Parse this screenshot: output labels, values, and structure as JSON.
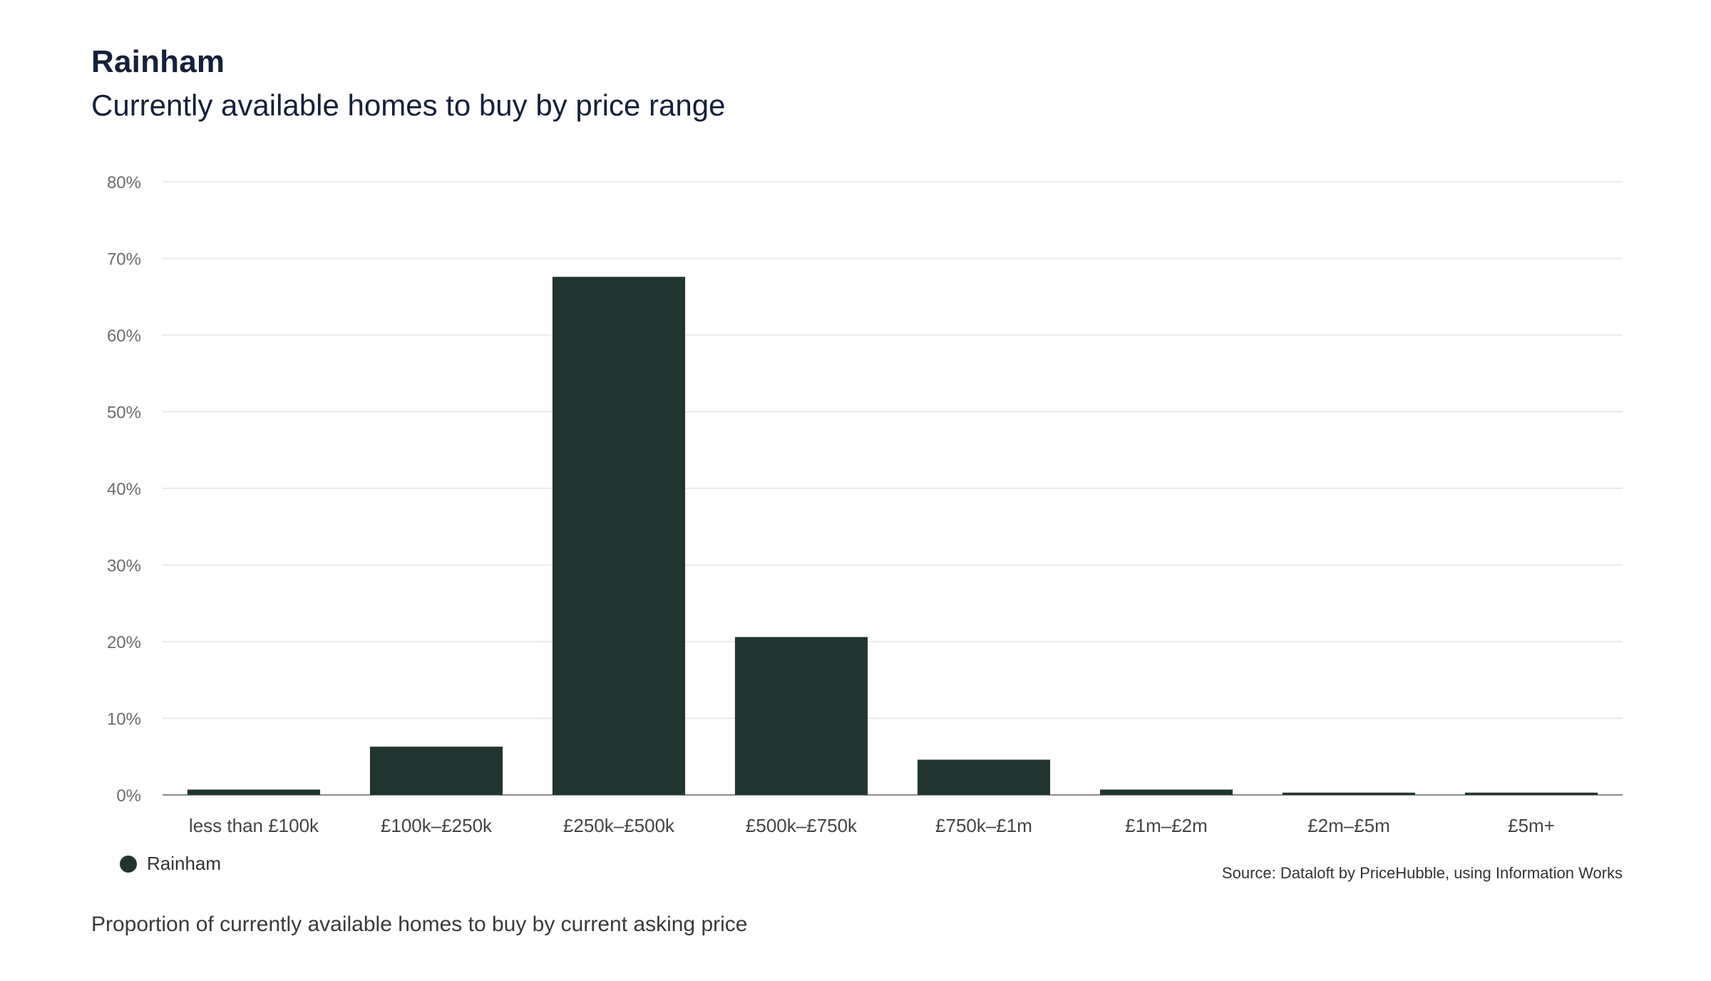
{
  "header": {
    "title": "Rainham",
    "subtitle": "Currently available homes to buy by price range"
  },
  "chart_data": {
    "type": "bar",
    "title": "Rainham",
    "subtitle": "Currently available homes to buy by price range",
    "categories": [
      "less than £100k",
      "£100k–£250k",
      "£250k–£500k",
      "£500k–£750k",
      "£750k–£1m",
      "£1m–£2m",
      "£2m–£5m",
      "£5m+"
    ],
    "series": [
      {
        "name": "Rainham",
        "values": [
          0.7,
          6.3,
          67.6,
          20.6,
          4.6,
          0.7,
          0.3,
          0.3
        ],
        "color": "#213530"
      }
    ],
    "ylim": [
      0,
      80
    ],
    "yticks": [
      0,
      10,
      20,
      30,
      40,
      50,
      60,
      70,
      80
    ],
    "ytick_labels": [
      "0%",
      "10%",
      "20%",
      "30%",
      "40%",
      "50%",
      "60%",
      "70%",
      "80%"
    ],
    "xlabel": "",
    "ylabel": "",
    "grid": true,
    "legend_position": "bottom-left"
  },
  "legend": {
    "label": "Rainham",
    "color": "#213530"
  },
  "source": "Source: Dataloft by PriceHubble, using Information Works",
  "footnote": "Proportion of currently available homes to buy by current asking price"
}
